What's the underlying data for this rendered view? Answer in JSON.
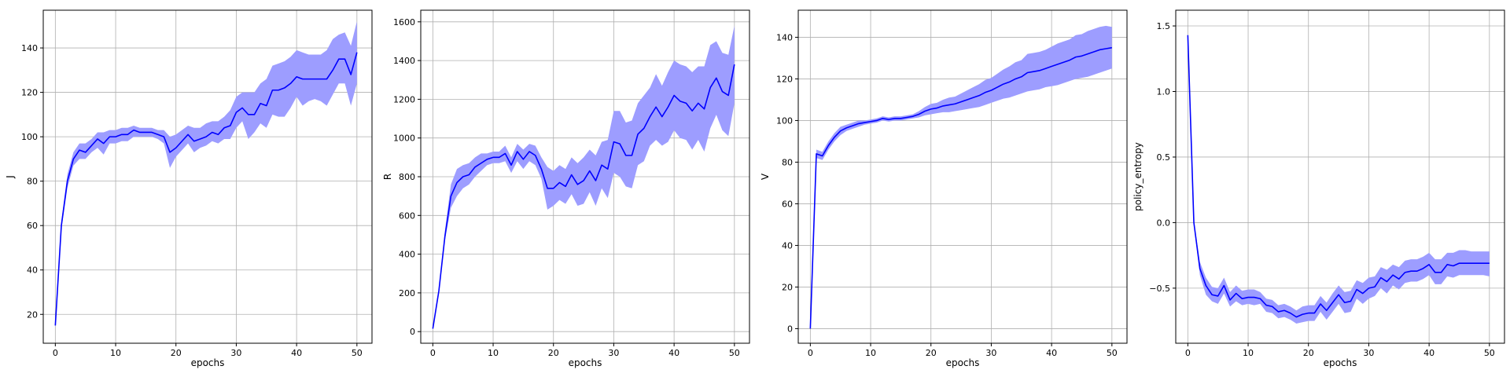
{
  "figure": {
    "colors": {
      "line": "#0000ff",
      "band": "#9d9dff",
      "grid": "#b0b0b0",
      "frame": "#000000"
    }
  },
  "chart_data": [
    {
      "type": "line",
      "xlabel": "epochs",
      "ylabel": "J",
      "xlim": [
        -2,
        52.5
      ],
      "ylim": [
        7,
        157
      ],
      "xticks": [
        0,
        10,
        20,
        30,
        40,
        50
      ],
      "yticks": [
        20,
        40,
        60,
        80,
        100,
        120,
        140
      ],
      "grid": true,
      "x": [
        0,
        1,
        2,
        3,
        4,
        5,
        6,
        7,
        8,
        9,
        10,
        11,
        12,
        13,
        14,
        15,
        16,
        17,
        18,
        19,
        20,
        21,
        22,
        23,
        24,
        25,
        26,
        27,
        28,
        29,
        30,
        31,
        32,
        33,
        34,
        35,
        36,
        37,
        38,
        39,
        40,
        41,
        42,
        43,
        44,
        45,
        46,
        47,
        48,
        49,
        50
      ],
      "series": [
        {
          "values": [
            15,
            60,
            80,
            90,
            94,
            93,
            96,
            99,
            97,
            100,
            100,
            101,
            101,
            103,
            102,
            102,
            102,
            101,
            100,
            93,
            95,
            98,
            101,
            98,
            99,
            100,
            102,
            101,
            104,
            105,
            111,
            113,
            110,
            110,
            115,
            114,
            121,
            121,
            122,
            124,
            127,
            126,
            126,
            126,
            126,
            126,
            130,
            135,
            135,
            128,
            138
          ],
          "lower": [
            14,
            58,
            77,
            87,
            90,
            90,
            93,
            95,
            92,
            97,
            97,
            98,
            98,
            100,
            100,
            100,
            100,
            99,
            97,
            86,
            91,
            94,
            97,
            93,
            95,
            96,
            98,
            97,
            99,
            99,
            104,
            107,
            99,
            102,
            106,
            104,
            110,
            109,
            109,
            113,
            118,
            114,
            116,
            117,
            116,
            114,
            119,
            124,
            124,
            114,
            124
          ],
          "upper": [
            16,
            62,
            83,
            93,
            97,
            97,
            99,
            102,
            102,
            103,
            103,
            104,
            104,
            105,
            104,
            104,
            104,
            103,
            103,
            100,
            101,
            103,
            105,
            104,
            104,
            106,
            107,
            107,
            109,
            112,
            118,
            120,
            120,
            120,
            124,
            126,
            132,
            133,
            134,
            136,
            139,
            138,
            137,
            137,
            137,
            139,
            144,
            146,
            147,
            141,
            152
          ]
        }
      ]
    },
    {
      "type": "line",
      "xlabel": "epochs",
      "ylabel": "R",
      "xlim": [
        -2,
        52.5
      ],
      "ylim": [
        -60,
        1660
      ],
      "xticks": [
        0,
        10,
        20,
        30,
        40,
        50
      ],
      "yticks": [
        0,
        200,
        400,
        600,
        800,
        1000,
        1200,
        1400,
        1600
      ],
      "grid": true,
      "x": [
        0,
        1,
        2,
        3,
        4,
        5,
        6,
        7,
        8,
        9,
        10,
        11,
        12,
        13,
        14,
        15,
        16,
        17,
        18,
        19,
        20,
        21,
        22,
        23,
        24,
        25,
        26,
        27,
        28,
        29,
        30,
        31,
        32,
        33,
        34,
        35,
        36,
        37,
        38,
        39,
        40,
        41,
        42,
        43,
        44,
        45,
        46,
        47,
        48,
        49,
        50
      ],
      "series": [
        {
          "values": [
            15,
            210,
            490,
            700,
            770,
            800,
            810,
            850,
            870,
            890,
            900,
            900,
            920,
            860,
            930,
            890,
            930,
            910,
            840,
            740,
            740,
            770,
            750,
            810,
            760,
            780,
            830,
            780,
            860,
            840,
            980,
            970,
            910,
            910,
            1020,
            1050,
            1110,
            1160,
            1110,
            1160,
            1220,
            1190,
            1180,
            1140,
            1180,
            1150,
            1260,
            1310,
            1240,
            1220,
            1380
          ],
          "lower": [
            10,
            200,
            470,
            640,
            700,
            740,
            760,
            800,
            830,
            860,
            870,
            870,
            880,
            820,
            880,
            840,
            880,
            860,
            790,
            630,
            650,
            680,
            660,
            710,
            650,
            660,
            720,
            650,
            740,
            690,
            820,
            800,
            750,
            740,
            860,
            880,
            960,
            990,
            960,
            980,
            1040,
            1000,
            990,
            940,
            990,
            930,
            1050,
            1120,
            1040,
            1010,
            1180
          ],
          "upper": [
            20,
            220,
            520,
            760,
            840,
            860,
            870,
            900,
            920,
            920,
            930,
            930,
            960,
            900,
            970,
            940,
            970,
            960,
            900,
            850,
            830,
            860,
            840,
            900,
            870,
            900,
            940,
            910,
            980,
            990,
            1140,
            1140,
            1080,
            1090,
            1180,
            1220,
            1260,
            1330,
            1270,
            1340,
            1400,
            1380,
            1370,
            1340,
            1370,
            1370,
            1480,
            1500,
            1440,
            1430,
            1580
          ]
        }
      ]
    },
    {
      "type": "line",
      "xlabel": "epochs",
      "ylabel": "V",
      "xlim": [
        -2,
        52.5
      ],
      "ylim": [
        -7,
        153
      ],
      "xticks": [
        0,
        10,
        20,
        30,
        40,
        50
      ],
      "yticks": [
        0,
        20,
        40,
        60,
        80,
        100,
        120,
        140
      ],
      "grid": true,
      "x": [
        0,
        1,
        2,
        3,
        4,
        5,
        6,
        7,
        8,
        9,
        10,
        11,
        12,
        13,
        14,
        15,
        16,
        17,
        18,
        19,
        20,
        21,
        22,
        23,
        24,
        25,
        26,
        27,
        28,
        29,
        30,
        31,
        32,
        33,
        34,
        35,
        36,
        37,
        38,
        39,
        40,
        41,
        42,
        43,
        44,
        45,
        46,
        47,
        48,
        49,
        50
      ],
      "series": [
        {
          "values": [
            0,
            84,
            83,
            88,
            92,
            95,
            96.5,
            97.5,
            98.5,
            99,
            99.5,
            100,
            101,
            100.5,
            101,
            101,
            101.5,
            102,
            103,
            104.5,
            105.5,
            106,
            107,
            107.5,
            108,
            109,
            110,
            111,
            112,
            113.5,
            114.5,
            116,
            117.5,
            118.5,
            120,
            121,
            123,
            123.5,
            124,
            125,
            126,
            127,
            128,
            129,
            130.5,
            131,
            132,
            133,
            134,
            134.5,
            135
          ],
          "lower": [
            0,
            82,
            81,
            86,
            90,
            93,
            95,
            96,
            97,
            98,
            98.5,
            99,
            100,
            99.5,
            100,
            100,
            100.5,
            101,
            101.5,
            102.5,
            103,
            103.5,
            104,
            104,
            104.5,
            105,
            105.5,
            106,
            106.5,
            107.5,
            108.5,
            109.5,
            110.5,
            111,
            112,
            113,
            114,
            114.5,
            115,
            116,
            116.5,
            117,
            118,
            119,
            120,
            120.5,
            121,
            122,
            123,
            124,
            125
          ],
          "upper": [
            0,
            86,
            85,
            90,
            94,
            97,
            98,
            99,
            100,
            100,
            100.5,
            101,
            102,
            101.5,
            102,
            102,
            102.5,
            103,
            104.5,
            106.5,
            108,
            108.5,
            110,
            111,
            111.5,
            113,
            114.5,
            116,
            117.5,
            119.5,
            120.5,
            122.5,
            124.5,
            126,
            128,
            129,
            132,
            132.5,
            133,
            134,
            135.5,
            137,
            138,
            139,
            141,
            141.5,
            143,
            144,
            145,
            145.5,
            145
          ]
        }
      ]
    },
    {
      "type": "line",
      "xlabel": "epochs",
      "ylabel": "policy_entropy",
      "xlim": [
        -2,
        52.5
      ],
      "ylim": [
        -0.92,
        1.62
      ],
      "xticks": [
        0,
        10,
        20,
        30,
        40,
        50
      ],
      "yticks": [
        -0.5,
        0.0,
        0.5,
        1.0,
        1.5
      ],
      "ytick_labels": [
        "−0.5",
        "0.0",
        "0.5",
        "1.0",
        "1.5"
      ],
      "grid": true,
      "x": [
        0,
        1,
        2,
        3,
        4,
        5,
        6,
        7,
        8,
        9,
        10,
        11,
        12,
        13,
        14,
        15,
        16,
        17,
        18,
        19,
        20,
        21,
        22,
        23,
        24,
        25,
        26,
        27,
        28,
        29,
        30,
        31,
        32,
        33,
        34,
        35,
        36,
        37,
        38,
        39,
        40,
        41,
        42,
        43,
        44,
        45,
        46,
        47,
        48,
        49,
        50
      ],
      "series": [
        {
          "values": [
            1.43,
            0.0,
            -0.35,
            -0.48,
            -0.55,
            -0.56,
            -0.48,
            -0.59,
            -0.54,
            -0.58,
            -0.57,
            -0.57,
            -0.58,
            -0.63,
            -0.64,
            -0.68,
            -0.67,
            -0.69,
            -0.72,
            -0.7,
            -0.69,
            -0.69,
            -0.62,
            -0.67,
            -0.61,
            -0.55,
            -0.61,
            -0.6,
            -0.51,
            -0.54,
            -0.5,
            -0.49,
            -0.42,
            -0.45,
            -0.4,
            -0.43,
            -0.38,
            -0.37,
            -0.37,
            -0.35,
            -0.32,
            -0.38,
            -0.38,
            -0.32,
            -0.33,
            -0.31,
            -0.31,
            -0.31,
            -0.31,
            -0.31,
            -0.31
          ],
          "lower": [
            1.43,
            -0.02,
            -0.4,
            -0.55,
            -0.6,
            -0.62,
            -0.54,
            -0.64,
            -0.6,
            -0.63,
            -0.62,
            -0.63,
            -0.62,
            -0.68,
            -0.69,
            -0.73,
            -0.72,
            -0.74,
            -0.77,
            -0.76,
            -0.75,
            -0.75,
            -0.68,
            -0.74,
            -0.68,
            -0.62,
            -0.69,
            -0.68,
            -0.58,
            -0.62,
            -0.58,
            -0.56,
            -0.5,
            -0.54,
            -0.48,
            -0.51,
            -0.46,
            -0.45,
            -0.45,
            -0.43,
            -0.4,
            -0.47,
            -0.47,
            -0.41,
            -0.42,
            -0.4,
            -0.4,
            -0.4,
            -0.4,
            -0.4,
            -0.41
          ],
          "upper": [
            1.43,
            0.02,
            -0.3,
            -0.42,
            -0.49,
            -0.5,
            -0.42,
            -0.53,
            -0.48,
            -0.52,
            -0.51,
            -0.51,
            -0.53,
            -0.58,
            -0.59,
            -0.63,
            -0.62,
            -0.64,
            -0.67,
            -0.64,
            -0.63,
            -0.63,
            -0.56,
            -0.61,
            -0.54,
            -0.48,
            -0.53,
            -0.52,
            -0.44,
            -0.46,
            -0.42,
            -0.41,
            -0.34,
            -0.36,
            -0.32,
            -0.34,
            -0.29,
            -0.28,
            -0.28,
            -0.26,
            -0.23,
            -0.28,
            -0.28,
            -0.23,
            -0.23,
            -0.21,
            -0.21,
            -0.22,
            -0.22,
            -0.22,
            -0.22
          ]
        }
      ]
    }
  ]
}
